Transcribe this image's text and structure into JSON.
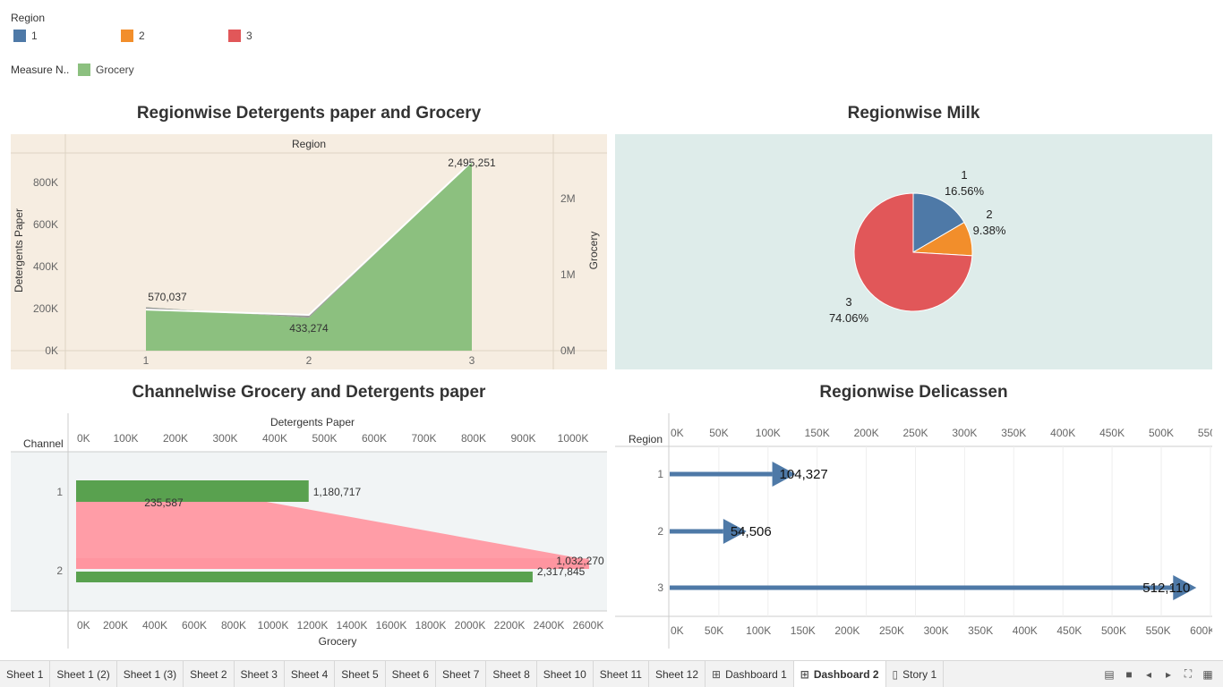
{
  "legends": {
    "region": {
      "title": "Region",
      "items": [
        {
          "label": "1",
          "color": "#4e79a7"
        },
        {
          "label": "2",
          "color": "#f28e2b"
        },
        {
          "label": "3",
          "color": "#e15759"
        }
      ]
    },
    "measure": {
      "title": "Measure N..",
      "items": [
        {
          "label": "Grocery",
          "color": "#8cc07f"
        }
      ]
    }
  },
  "chart_data": [
    {
      "id": "chart1",
      "type": "area",
      "title": "Regionwise Detergents paper and Grocery",
      "column_header": "Region",
      "categories": [
        "1",
        "2",
        "3"
      ],
      "series": [
        {
          "name": "Detergents Paper",
          "values": [
            195000,
            170000,
            900000
          ],
          "color": "#9b9b9b"
        },
        {
          "name": "Grocery",
          "values": [
            570037,
            433274,
            2495251
          ],
          "color": "#8cc07f"
        }
      ],
      "data_labels": [
        "570,037",
        "433,274",
        "2,495,251"
      ],
      "ylabel_left": "Detergents Paper",
      "ylabel_right": "Grocery",
      "ylim_left": [
        0,
        940000
      ],
      "ylim_right": [
        0,
        2600000
      ],
      "yticks_left": [
        "0K",
        "200K",
        "400K",
        "600K",
        "800K"
      ],
      "yticks_right": [
        "0M",
        "1M",
        "2M"
      ]
    },
    {
      "id": "chart2",
      "type": "pie",
      "title": "Regionwise Milk",
      "slices": [
        {
          "label": "1",
          "pct": "16.56%",
          "value": 16.56,
          "color": "#4e79a7"
        },
        {
          "label": "2",
          "pct": "9.38%",
          "value": 9.38,
          "color": "#f28e2b"
        },
        {
          "label": "3",
          "pct": "74.06%",
          "value": 74.06,
          "color": "#e15759"
        }
      ]
    },
    {
      "id": "chart3",
      "type": "bar",
      "title": "Channelwise Grocery and Detergents paper",
      "row_header": "Channel",
      "categories": [
        "1",
        "2"
      ],
      "series": [
        {
          "name": "Detergents Paper",
          "values": [
            235587,
            1032270
          ],
          "labels": [
            "235,587",
            "1,032,270"
          ],
          "color": "#ff9da7"
        },
        {
          "name": "Grocery",
          "values": [
            1180717,
            2317845
          ],
          "labels": [
            "1,180,717",
            "2,317,845"
          ],
          "color": "#59a14f"
        }
      ],
      "xlabel_top": "Detergents Paper",
      "xlabel_bottom": "Grocery",
      "xticks_top": [
        "0K",
        "100K",
        "200K",
        "300K",
        "400K",
        "500K",
        "600K",
        "700K",
        "800K",
        "900K",
        "1000K"
      ],
      "xticks_bottom": [
        "0K",
        "200K",
        "400K",
        "600K",
        "800K",
        "1000K",
        "1200K",
        "1400K",
        "1600K",
        "1800K",
        "2000K",
        "2200K",
        "2400K",
        "2600K"
      ]
    },
    {
      "id": "chart4",
      "type": "bar",
      "title": "Regionwise Delicassen",
      "row_header": "Region",
      "categories": [
        "1",
        "2",
        "3"
      ],
      "values": [
        104327,
        54506,
        512110
      ],
      "labels": [
        "104,327",
        "54,506",
        "512,110"
      ],
      "color": "#4e79a7",
      "xlim": [
        0,
        550000
      ],
      "xticks": [
        "0K",
        "50K",
        "100K",
        "150K",
        "200K",
        "250K",
        "300K",
        "350K",
        "400K",
        "450K",
        "500K",
        "550K"
      ],
      "xticks_bottom": [
        "0K",
        "50K",
        "100K",
        "150K",
        "200K",
        "250K",
        "300K",
        "350K",
        "400K",
        "450K",
        "500K",
        "550K",
        "600K"
      ]
    }
  ],
  "tabs": [
    {
      "label": "Sheet 1",
      "icon": ""
    },
    {
      "label": "Sheet 1 (2)",
      "icon": ""
    },
    {
      "label": "Sheet 1 (3)",
      "icon": ""
    },
    {
      "label": "Sheet 2",
      "icon": ""
    },
    {
      "label": "Sheet 3",
      "icon": ""
    },
    {
      "label": "Sheet 4",
      "icon": ""
    },
    {
      "label": "Sheet 5",
      "icon": ""
    },
    {
      "label": "Sheet 6",
      "icon": ""
    },
    {
      "label": "Sheet 7",
      "icon": ""
    },
    {
      "label": "Sheet 8",
      "icon": ""
    },
    {
      "label": "Sheet 10",
      "icon": ""
    },
    {
      "label": "Sheet 11",
      "icon": ""
    },
    {
      "label": "Sheet 12",
      "icon": ""
    },
    {
      "label": "Dashboard 1",
      "icon": "dashboard-icon"
    },
    {
      "label": "Dashboard 2",
      "icon": "dashboard-icon",
      "active": true
    },
    {
      "label": "Story 1",
      "icon": "story-icon"
    }
  ],
  "controls": [
    "sheet-sorter-icon",
    "filmstrip-icon",
    "prev-icon",
    "next-icon",
    "fullscreen-icon",
    "grid-icon"
  ]
}
